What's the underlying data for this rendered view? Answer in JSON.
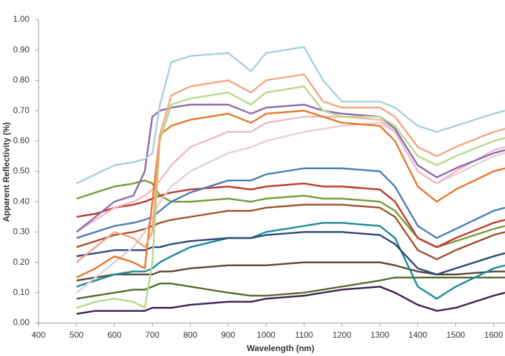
{
  "chart_data": {
    "type": "line",
    "x_label": "Wavelength (nm)",
    "y_label": "Apparent Reflectivity (%)",
    "x": [
      500,
      550,
      600,
      650,
      680,
      700,
      720,
      750,
      800,
      900,
      960,
      1000,
      1100,
      1150,
      1200,
      1300,
      1340,
      1400,
      1450,
      1500,
      1600,
      1630
    ],
    "xlim": [
      400,
      1630
    ],
    "xticks": [
      400,
      500,
      600,
      700,
      800,
      900,
      1000,
      1100,
      1200,
      1300,
      1400,
      1500,
      1600
    ],
    "ylim": [
      0,
      1
    ],
    "yticks": [
      {
        "value": 0,
        "label": "0.00"
      },
      {
        "value": 0.1,
        "label": "0.10"
      },
      {
        "value": 0.2,
        "label": "0.20"
      },
      {
        "value": 0.3,
        "label": "0.30"
      },
      {
        "value": 0.4,
        "label": "0.40"
      },
      {
        "value": 0.5,
        "label": "0.50"
      },
      {
        "value": 0.6,
        "label": "0.60"
      },
      {
        "value": 0.7,
        "label": "0.70"
      },
      {
        "value": 0.8,
        "label": "0.80"
      },
      {
        "value": 0.9,
        "label": "0.90"
      },
      {
        "value": 1,
        "label": "1.00"
      }
    ],
    "grid": false,
    "series": [
      {
        "color": "#3d2352",
        "values": [
          0.03,
          0.04,
          0.04,
          0.04,
          0.04,
          0.05,
          0.05,
          0.05,
          0.06,
          0.07,
          0.07,
          0.08,
          0.09,
          0.1,
          0.11,
          0.12,
          0.1,
          0.06,
          0.04,
          0.05,
          0.09,
          0.1
        ]
      },
      {
        "color": "#556b2f",
        "values": [
          0.08,
          0.09,
          0.1,
          0.11,
          0.11,
          0.12,
          0.13,
          0.13,
          0.12,
          0.1,
          0.09,
          0.09,
          0.1,
          0.11,
          0.12,
          0.14,
          0.15,
          0.15,
          0.15,
          0.15,
          0.15,
          0.15
        ]
      },
      {
        "color": "#5b4a3a",
        "values": [
          0.14,
          0.15,
          0.16,
          0.16,
          0.16,
          0.16,
          0.17,
          0.17,
          0.18,
          0.19,
          0.19,
          0.19,
          0.2,
          0.2,
          0.2,
          0.2,
          0.19,
          0.17,
          0.16,
          0.16,
          0.17,
          0.17
        ]
      },
      {
        "color": "#1f8a9a",
        "values": [
          0.12,
          0.14,
          0.16,
          0.17,
          0.17,
          0.18,
          0.2,
          0.22,
          0.25,
          0.28,
          0.28,
          0.3,
          0.32,
          0.33,
          0.33,
          0.32,
          0.28,
          0.12,
          0.08,
          0.12,
          0.18,
          0.19
        ]
      },
      {
        "color": "#2e4a7a",
        "values": [
          0.22,
          0.23,
          0.24,
          0.24,
          0.24,
          0.25,
          0.25,
          0.26,
          0.27,
          0.28,
          0.28,
          0.29,
          0.3,
          0.3,
          0.3,
          0.29,
          0.26,
          0.18,
          0.16,
          0.18,
          0.22,
          0.23
        ]
      },
      {
        "color": "#a0522d",
        "values": [
          0.25,
          0.27,
          0.29,
          0.3,
          0.31,
          0.32,
          0.33,
          0.34,
          0.35,
          0.37,
          0.37,
          0.38,
          0.39,
          0.39,
          0.39,
          0.38,
          0.35,
          0.24,
          0.21,
          0.24,
          0.29,
          0.3
        ]
      },
      {
        "color": "#7a9a3a",
        "values": [
          0.41,
          0.43,
          0.45,
          0.46,
          0.47,
          0.46,
          0.42,
          0.4,
          0.4,
          0.41,
          0.4,
          0.41,
          0.42,
          0.41,
          0.41,
          0.4,
          0.37,
          0.28,
          0.25,
          0.27,
          0.31,
          0.32
        ]
      },
      {
        "color": "#c0392b",
        "values": [
          0.35,
          0.36,
          0.38,
          0.39,
          0.4,
          0.41,
          0.42,
          0.43,
          0.44,
          0.45,
          0.44,
          0.45,
          0.46,
          0.45,
          0.45,
          0.44,
          0.4,
          0.28,
          0.25,
          0.28,
          0.33,
          0.34
        ]
      },
      {
        "color": "#4a7fb5",
        "values": [
          0.28,
          0.3,
          0.32,
          0.33,
          0.34,
          0.35,
          0.37,
          0.4,
          0.43,
          0.47,
          0.47,
          0.49,
          0.51,
          0.51,
          0.51,
          0.5,
          0.45,
          0.32,
          0.28,
          0.31,
          0.37,
          0.38
        ]
      },
      {
        "color": "#e6cfd6",
        "values": [
          0.1,
          0.15,
          0.2,
          0.25,
          0.3,
          0.35,
          0.4,
          0.45,
          0.5,
          0.56,
          0.58,
          0.6,
          0.63,
          0.64,
          0.65,
          0.66,
          0.63,
          0.5,
          0.46,
          0.49,
          0.55,
          0.56
        ]
      },
      {
        "color": "#f2b8c6",
        "values": [
          0.3,
          0.34,
          0.38,
          0.4,
          0.42,
          0.44,
          0.47,
          0.52,
          0.58,
          0.63,
          0.63,
          0.66,
          0.68,
          0.68,
          0.68,
          0.67,
          0.63,
          0.5,
          0.46,
          0.5,
          0.57,
          0.58
        ]
      },
      {
        "color": "#e8772e",
        "values": [
          0.15,
          0.18,
          0.22,
          0.2,
          0.18,
          0.4,
          0.62,
          0.65,
          0.67,
          0.69,
          0.66,
          0.69,
          0.7,
          0.68,
          0.66,
          0.65,
          0.6,
          0.45,
          0.4,
          0.44,
          0.5,
          0.51
        ]
      },
      {
        "color": "#8e6bb0",
        "values": [
          0.3,
          0.35,
          0.4,
          0.42,
          0.5,
          0.68,
          0.7,
          0.71,
          0.72,
          0.72,
          0.69,
          0.71,
          0.72,
          0.7,
          0.69,
          0.68,
          0.64,
          0.52,
          0.48,
          0.51,
          0.56,
          0.57
        ]
      },
      {
        "color": "#b8d88a",
        "values": [
          0.05,
          0.07,
          0.08,
          0.07,
          0.05,
          0.2,
          0.6,
          0.72,
          0.74,
          0.76,
          0.72,
          0.76,
          0.78,
          0.7,
          0.68,
          0.68,
          0.65,
          0.55,
          0.52,
          0.55,
          0.6,
          0.61
        ]
      },
      {
        "color": "#f4a582",
        "values": [
          0.2,
          0.25,
          0.3,
          0.28,
          0.25,
          0.3,
          0.62,
          0.75,
          0.78,
          0.8,
          0.76,
          0.8,
          0.82,
          0.73,
          0.71,
          0.71,
          0.68,
          0.58,
          0.55,
          0.58,
          0.63,
          0.64
        ]
      },
      {
        "color": "#a8d0dc",
        "values": [
          0.46,
          0.49,
          0.52,
          0.53,
          0.54,
          0.56,
          0.72,
          0.86,
          0.88,
          0.89,
          0.83,
          0.89,
          0.91,
          0.8,
          0.73,
          0.73,
          0.71,
          0.65,
          0.63,
          0.65,
          0.69,
          0.7
        ]
      }
    ]
  }
}
